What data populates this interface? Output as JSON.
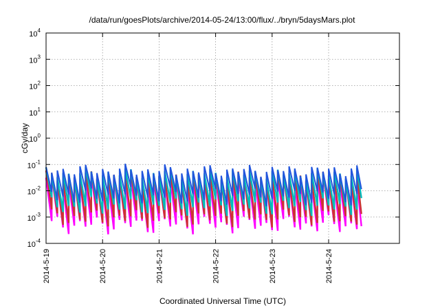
{
  "chart_data": {
    "type": "line",
    "title": "/data/run/goesPlots/archive/2014-05-24/13:00/flux/../bryn/5daysMars.plot",
    "xlabel": "Coordinated Universal Time (UTC)",
    "ylabel": "cGy/day",
    "yscale": "log",
    "ylim_exp": [
      -4,
      4
    ],
    "y_ticks": [
      {
        "base": "10",
        "exp": "-4",
        "e": -4
      },
      {
        "base": "10",
        "exp": "-3",
        "e": -3
      },
      {
        "base": "10",
        "exp": "-2",
        "e": -2
      },
      {
        "base": "10",
        "exp": "-1",
        "e": -1
      },
      {
        "base": "10",
        "exp": "0",
        "e": 0
      },
      {
        "base": "10",
        "exp": "1",
        "e": 1
      },
      {
        "base": "10",
        "exp": "2",
        "e": 2
      },
      {
        "base": "10",
        "exp": "3",
        "e": 3
      },
      {
        "base": "10",
        "exp": "4",
        "e": 4
      }
    ],
    "x_ticks": [
      {
        "label": "2014-5-19",
        "day": 0
      },
      {
        "label": "2014-5-20",
        "day": 1
      },
      {
        "label": "2014-5-21",
        "day": 2
      },
      {
        "label": "2014-5-22",
        "day": 3
      },
      {
        "label": "2014-5-23",
        "day": 4
      },
      {
        "label": "2014-5-24",
        "day": 5
      }
    ],
    "xlim_days": [
      0,
      5.58
    ],
    "grid": true,
    "sawtooth_period_days": 0.1,
    "series": [
      {
        "color": "#ff00ff",
        "peak": 0.025,
        "trough": 0.0005
      },
      {
        "color": "#cc3333",
        "peak": 0.035,
        "trough": 0.0009
      },
      {
        "color": "#00bbbb",
        "peak": 0.045,
        "trough": 0.0025
      },
      {
        "color": "#2255dd",
        "peak": 0.06,
        "trough": 0.006
      }
    ]
  }
}
